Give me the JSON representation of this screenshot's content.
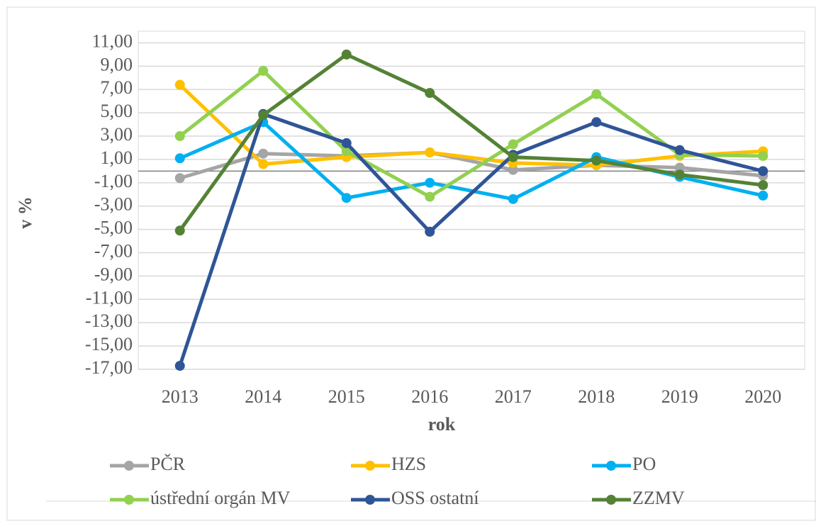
{
  "chart_data": {
    "type": "line",
    "categories": [
      "2013",
      "2014",
      "2015",
      "2016",
      "2017",
      "2018",
      "2019",
      "2020"
    ],
    "xlabel": "rok",
    "ylabel": "v %",
    "ylim": [
      -17,
      12
    ],
    "yticks": [
      {
        "value": 11,
        "label": "11,00"
      },
      {
        "value": 9,
        "label": "9,00"
      },
      {
        "value": 7,
        "label": "7,00"
      },
      {
        "value": 5,
        "label": "5,00"
      },
      {
        "value": 3,
        "label": "3,00"
      },
      {
        "value": 1,
        "label": "1,00"
      },
      {
        "value": -1,
        "label": "-1,00"
      },
      {
        "value": -3,
        "label": "-3,00"
      },
      {
        "value": -5,
        "label": "-5,00"
      },
      {
        "value": -7,
        "label": "-7,00"
      },
      {
        "value": -9,
        "label": "-9,00"
      },
      {
        "value": -11,
        "label": "-11,00"
      },
      {
        "value": -13,
        "label": "-13,00"
      },
      {
        "value": -15,
        "label": "-15,00"
      },
      {
        "value": -17,
        "label": "-17,00"
      }
    ],
    "grid": true,
    "legend": "bottom",
    "series": [
      {
        "name": "PČR",
        "color": "#a5a5a5",
        "values": [
          -0.6,
          1.5,
          1.3,
          1.6,
          0.1,
          0.5,
          0.3,
          -0.4
        ]
      },
      {
        "name": "HZS",
        "color": "#ffc000",
        "values": [
          7.4,
          0.6,
          1.2,
          1.6,
          0.7,
          0.5,
          1.3,
          1.7
        ]
      },
      {
        "name": "PO",
        "color": "#00b0f0",
        "values": [
          1.1,
          4.2,
          -2.3,
          -1.0,
          -2.4,
          1.2,
          -0.5,
          -2.1
        ]
      },
      {
        "name": "ústřední orgán MV",
        "color": "#92d050",
        "values": [
          3.0,
          8.6,
          1.7,
          -2.2,
          2.3,
          6.6,
          1.4,
          1.3
        ]
      },
      {
        "name": "OSS ostatní",
        "color": "#2f5597",
        "values": [
          -16.7,
          4.9,
          2.4,
          -5.2,
          1.4,
          4.2,
          1.8,
          0.0
        ]
      },
      {
        "name": "ZZMV",
        "color": "#548235",
        "values": [
          -5.1,
          4.8,
          10.0,
          6.7,
          1.2,
          0.9,
          -0.3,
          -1.2
        ]
      }
    ]
  }
}
